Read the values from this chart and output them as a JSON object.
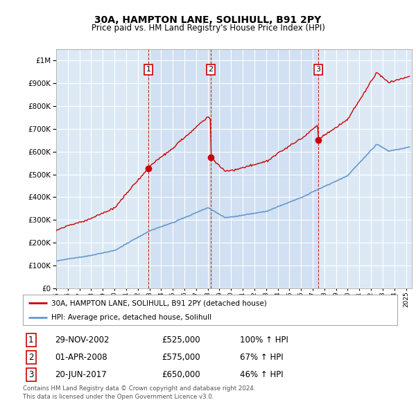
{
  "title": "30A, HAMPTON LANE, SOLIHULL, B91 2PY",
  "subtitle": "Price paid vs. HM Land Registry's House Price Index (HPI)",
  "ytick_values": [
    0,
    100000,
    200000,
    300000,
    400000,
    500000,
    600000,
    700000,
    800000,
    900000,
    1000000
  ],
  "ylim": [
    0,
    1050000
  ],
  "xlim_start": 1995.0,
  "xlim_end": 2025.5,
  "plot_bg_color": "#dce9f5",
  "grid_color": "#ffffff",
  "transaction_color": "#cc0000",
  "hpi_color": "#6699cc",
  "sale_band_color": "#c8daf0",
  "sale_points": [
    {
      "date_num": 2002.91,
      "price": 525000,
      "label": "1"
    },
    {
      "date_num": 2008.25,
      "price": 575000,
      "label": "2"
    },
    {
      "date_num": 2017.47,
      "price": 650000,
      "label": "3"
    }
  ],
  "legend_entries": [
    "30A, HAMPTON LANE, SOLIHULL, B91 2PY (detached house)",
    "HPI: Average price, detached house, Solihull"
  ],
  "table_rows": [
    {
      "num": "1",
      "date": "29-NOV-2002",
      "price": "£525,000",
      "hpi": "100% ↑ HPI"
    },
    {
      "num": "2",
      "date": "01-APR-2008",
      "price": "£575,000",
      "hpi": "67% ↑ HPI"
    },
    {
      "num": "3",
      "date": "20-JUN-2017",
      "price": "£650,000",
      "hpi": "46% ↑ HPI"
    }
  ],
  "footer": "Contains HM Land Registry data © Crown copyright and database right 2024.\nThis data is licensed under the Open Government Licence v3.0."
}
